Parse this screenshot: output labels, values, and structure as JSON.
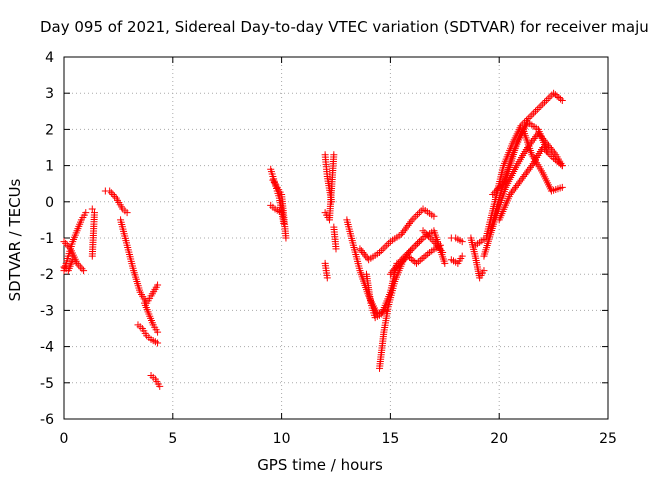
{
  "chart_data": {
    "type": "scatter",
    "title": "Day 095 of 2021, Sidereal Day-to-day VTEC variation (SDTVAR) for receiver maju",
    "xlabel": "GPS time / hours",
    "ylabel": "SDTVAR / TECUs",
    "xlim": [
      0,
      25
    ],
    "ylim": [
      -6,
      4
    ],
    "xticks": [
      "0",
      "5",
      "10",
      "15",
      "20",
      "25"
    ],
    "yticks": [
      "4",
      "3",
      "2",
      "1",
      "0",
      "-1",
      "-2",
      "-3",
      "-4",
      "-5",
      "-6"
    ],
    "grid": true,
    "marker": "+",
    "series_color": "#ff0000",
    "segments": [
      {
        "x": [
          0.0,
          0.2,
          0.4,
          0.6,
          0.8,
          1.0
        ],
        "y": [
          -1.9,
          -1.5,
          -1.1,
          -0.8,
          -0.5,
          -0.3
        ]
      },
      {
        "x": [
          0.0,
          0.3,
          0.6,
          0.9
        ],
        "y": [
          -1.1,
          -1.3,
          -1.7,
          -1.9
        ]
      },
      {
        "x": [
          0.0,
          0.2,
          0.4
        ],
        "y": [
          -1.8,
          -1.9,
          -1.6
        ]
      },
      {
        "x": [
          1.3,
          1.4,
          1.3
        ],
        "y": [
          -0.2,
          -0.3,
          -1.5
        ]
      },
      {
        "x": [
          1.9,
          2.1,
          2.4,
          2.7,
          2.9
        ],
        "y": [
          0.3,
          0.3,
          0.1,
          -0.2,
          -0.3
        ]
      },
      {
        "x": [
          2.6,
          2.9,
          3.2,
          3.5,
          3.8,
          4.0,
          4.3
        ],
        "y": [
          -0.5,
          -1.2,
          -1.9,
          -2.5,
          -2.8,
          -2.6,
          -2.3
        ]
      },
      {
        "x": [
          3.4,
          3.6,
          3.8,
          4.0,
          4.3
        ],
        "y": [
          -3.4,
          -3.5,
          -3.7,
          -3.8,
          -3.9
        ]
      },
      {
        "x": [
          3.7,
          3.9,
          4.1,
          4.3
        ],
        "y": [
          -2.8,
          -3.1,
          -3.4,
          -3.6
        ]
      },
      {
        "x": [
          4.0,
          4.2,
          4.4
        ],
        "y": [
          -4.8,
          -4.9,
          -5.1
        ]
      },
      {
        "x": [
          9.5,
          9.7,
          9.9,
          10.1
        ],
        "y": [
          0.9,
          0.5,
          0.1,
          -0.6
        ]
      },
      {
        "x": [
          9.5,
          9.7,
          10.0
        ],
        "y": [
          -0.1,
          -0.2,
          -0.3
        ]
      },
      {
        "x": [
          9.6,
          9.8,
          10.0,
          10.2
        ],
        "y": [
          0.6,
          0.4,
          0.2,
          -1.0
        ]
      },
      {
        "x": [
          12.0,
          12.1,
          12.3
        ],
        "y": [
          1.3,
          0.7,
          0.0
        ]
      },
      {
        "x": [
          12.0,
          12.2,
          12.4
        ],
        "y": [
          -0.3,
          -0.5,
          1.3
        ]
      },
      {
        "x": [
          12.0,
          12.1
        ],
        "y": [
          -1.7,
          -2.1
        ]
      },
      {
        "x": [
          12.4,
          12.5
        ],
        "y": [
          -0.7,
          -1.3
        ]
      },
      {
        "x": [
          13.0,
          13.3,
          13.6,
          14.0,
          14.4,
          14.8
        ],
        "y": [
          -0.5,
          -1.2,
          -1.9,
          -2.6,
          -3.1,
          -3.0
        ]
      },
      {
        "x": [
          13.6,
          14.0,
          14.5,
          15.0,
          15.5,
          16.0,
          16.5,
          17.0
        ],
        "y": [
          -1.3,
          -1.6,
          -1.4,
          -1.1,
          -0.9,
          -0.5,
          -0.2,
          -0.4
        ]
      },
      {
        "x": [
          13.9,
          14.1,
          14.3,
          14.6,
          15.0,
          15.3
        ],
        "y": [
          -2.0,
          -2.8,
          -3.2,
          -3.1,
          -2.5,
          -1.7
        ]
      },
      {
        "x": [
          14.5,
          14.7,
          14.9,
          15.2,
          15.6,
          16.0,
          16.5
        ],
        "y": [
          -4.6,
          -3.6,
          -2.9,
          -2.2,
          -1.6,
          -1.3,
          -1.0
        ]
      },
      {
        "x": [
          15.0,
          15.5,
          16.0,
          16.5,
          17.0,
          17.5
        ],
        "y": [
          -2.0,
          -1.6,
          -1.3,
          -1.0,
          -0.8,
          -1.7
        ]
      },
      {
        "x": [
          15.3,
          15.8,
          16.2,
          16.8,
          17.3
        ],
        "y": [
          -1.8,
          -1.5,
          -1.7,
          -1.4,
          -1.2
        ]
      },
      {
        "x": [
          16.5,
          17.0,
          17.4
        ],
        "y": [
          -0.8,
          -1.1,
          -1.4
        ]
      },
      {
        "x": [
          17.8,
          18.0,
          18.3
        ],
        "y": [
          -1.0,
          -1.0,
          -1.1
        ]
      },
      {
        "x": [
          17.8,
          18.1,
          18.3
        ],
        "y": [
          -1.6,
          -1.7,
          -1.5
        ]
      },
      {
        "x": [
          18.7,
          18.9,
          19.1,
          19.3
        ],
        "y": [
          -1.0,
          -1.5,
          -2.1,
          -1.9
        ]
      },
      {
        "x": [
          18.9,
          19.4,
          19.8,
          20.2,
          20.6,
          21.0,
          21.5,
          22.0,
          22.5,
          22.9
        ],
        "y": [
          -1.2,
          -1.0,
          0.0,
          1.0,
          1.6,
          2.1,
          2.4,
          2.7,
          3.0,
          2.8
        ]
      },
      {
        "x": [
          19.3,
          19.8,
          20.3,
          20.8,
          21.3,
          21.8,
          22.2,
          22.6,
          22.9
        ],
        "y": [
          -1.5,
          -0.5,
          0.4,
          1.0,
          1.5,
          1.9,
          1.6,
          1.3,
          1.0
        ]
      },
      {
        "x": [
          19.6,
          20.1,
          20.6,
          21.1,
          21.5,
          22.0,
          22.4,
          22.9
        ],
        "y": [
          -0.8,
          0.3,
          1.3,
          2.0,
          1.3,
          0.8,
          0.3,
          0.4
        ]
      },
      {
        "x": [
          20.0,
          20.5,
          21.0,
          21.5,
          22.0,
          22.5,
          22.9
        ],
        "y": [
          -0.5,
          0.2,
          0.6,
          1.0,
          1.5,
          1.2,
          1.0
        ]
      },
      {
        "x": [
          19.7,
          20.3,
          20.8,
          21.3,
          21.8,
          22.2
        ],
        "y": [
          0.2,
          0.6,
          1.6,
          2.2,
          2.0,
          1.4
        ]
      }
    ]
  }
}
